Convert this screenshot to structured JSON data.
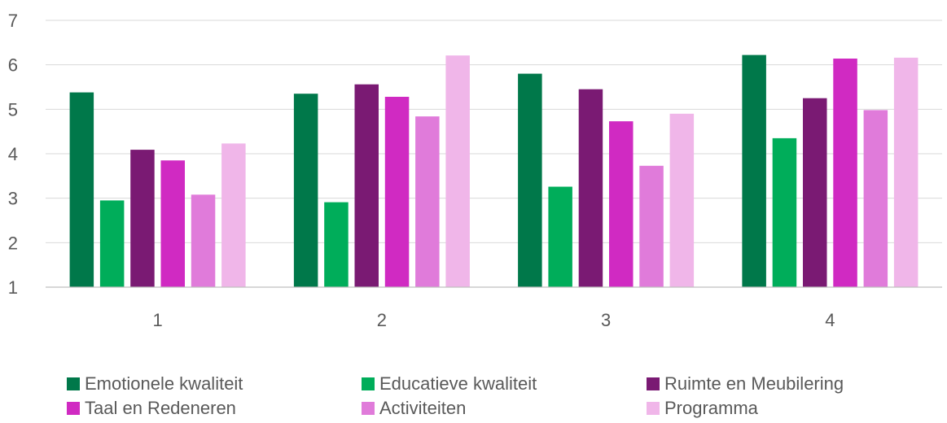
{
  "chart_data": {
    "type": "bar",
    "categories": [
      "1",
      "2",
      "3",
      "4"
    ],
    "ylim": [
      1,
      7
    ],
    "yticks": [
      "1",
      "2",
      "3",
      "4",
      "5",
      "6",
      "7"
    ],
    "grid": true,
    "legend_position": "bottom",
    "series": [
      {
        "name": "Emotionele kwaliteit",
        "color": "#00784a",
        "values": [
          5.38,
          5.35,
          5.8,
          6.22
        ]
      },
      {
        "name": "Educatieve kwaliteit",
        "color": "#00ad5a",
        "values": [
          2.95,
          2.91,
          3.26,
          4.35
        ]
      },
      {
        "name": "Ruimte en Meubilering",
        "color": "#7a1a73",
        "values": [
          4.09,
          5.56,
          5.45,
          5.25
        ]
      },
      {
        "name": "Taal en Redeneren",
        "color": "#d02ac2",
        "values": [
          3.85,
          5.28,
          4.73,
          6.14
        ]
      },
      {
        "name": "Activiteiten",
        "color": "#e07bda",
        "values": [
          3.08,
          4.84,
          3.73,
          4.98
        ]
      },
      {
        "name": "Programma",
        "color": "#f0b6e9",
        "values": [
          4.23,
          6.21,
          4.9,
          6.16
        ]
      }
    ]
  }
}
